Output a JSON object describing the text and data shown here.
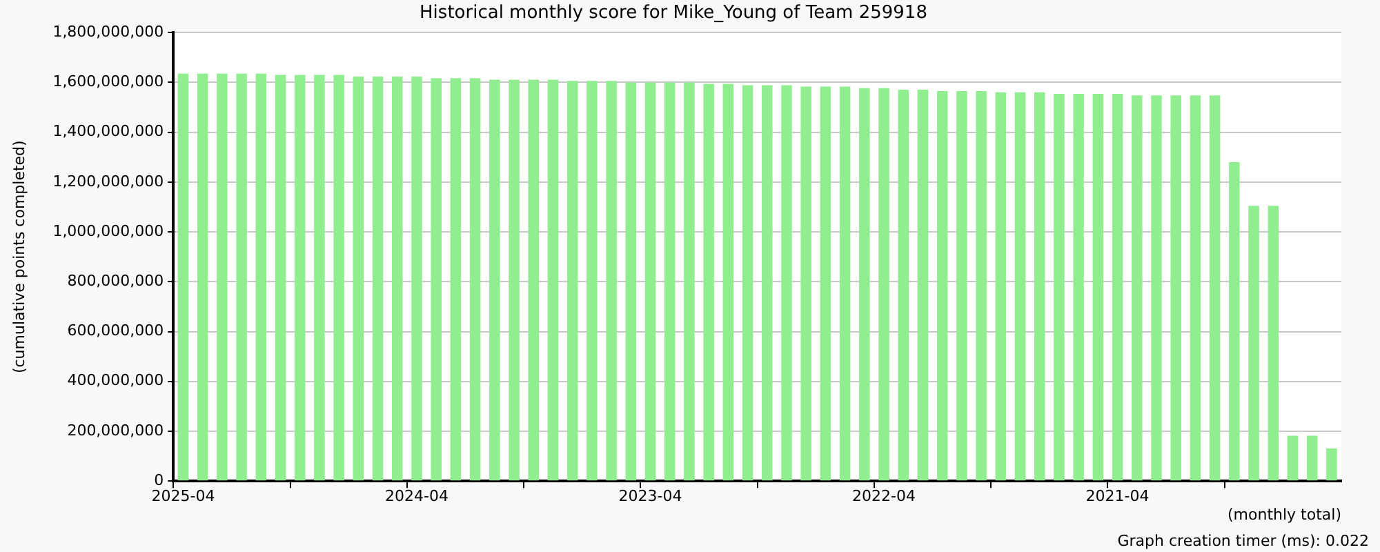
{
  "chart_data": {
    "type": "bar",
    "title": "Historical monthly score for Mike_Young of Team 259918",
    "xlabel": "(monthly total)",
    "ylabel": "(cumulative points completed)",
    "annotations": [
      "Graph creation timer (ms): 0.022"
    ],
    "categories": [
      "2025-04",
      null,
      null,
      null,
      null,
      null,
      null,
      null,
      null,
      null,
      null,
      null,
      "2024-04",
      null,
      null,
      null,
      null,
      null,
      null,
      null,
      null,
      null,
      null,
      null,
      "2023-04",
      null,
      null,
      null,
      null,
      null,
      null,
      null,
      null,
      null,
      null,
      null,
      "2022-04",
      null,
      null,
      null,
      null,
      null,
      null,
      null,
      null,
      null,
      null,
      null,
      "2021-04",
      null,
      null,
      null,
      null,
      null,
      null,
      null,
      null,
      null,
      null,
      null
    ],
    "values": [
      1635000000,
      1635000000,
      1635000000,
      1635000000,
      1635000000,
      1630000000,
      1630000000,
      1630000000,
      1630000000,
      1623000000,
      1623000000,
      1623000000,
      1623000000,
      1617000000,
      1617000000,
      1617000000,
      1611000000,
      1611000000,
      1611000000,
      1611000000,
      1606000000,
      1606000000,
      1606000000,
      1600000000,
      1600000000,
      1600000000,
      1600000000,
      1594000000,
      1594000000,
      1589000000,
      1589000000,
      1589000000,
      1583000000,
      1583000000,
      1583000000,
      1577000000,
      1577000000,
      1571000000,
      1571000000,
      1565000000,
      1565000000,
      1565000000,
      1560000000,
      1560000000,
      1560000000,
      1554000000,
      1554000000,
      1554000000,
      1554000000,
      1548000000,
      1548000000,
      1548000000,
      1548000000,
      1548000000,
      1280000000,
      1105000000,
      1105000000,
      182000000,
      182000000,
      131000000
    ],
    "color": "#90ee90",
    "ylim": [
      0,
      1800000000
    ],
    "yticks": [
      0,
      {
        "value": 200000000,
        "label": "200,000,000"
      },
      {
        "value": 400000000,
        "label": "400,000,000"
      },
      {
        "value": 600000000,
        "label": "600,000,000"
      },
      {
        "value": 800000000,
        "label": "800,000,000"
      },
      {
        "value": 1000000000,
        "label": "1,000,000,000"
      },
      {
        "value": 1200000000,
        "label": "1,200,000,000"
      },
      {
        "value": 1400000000,
        "label": "1,400,000,000"
      },
      {
        "value": 1600000000,
        "label": "1,600,000,000"
      },
      {
        "value": 1800000000,
        "label": "1,800,000,000"
      }
    ],
    "grid": "y",
    "legend": false
  }
}
